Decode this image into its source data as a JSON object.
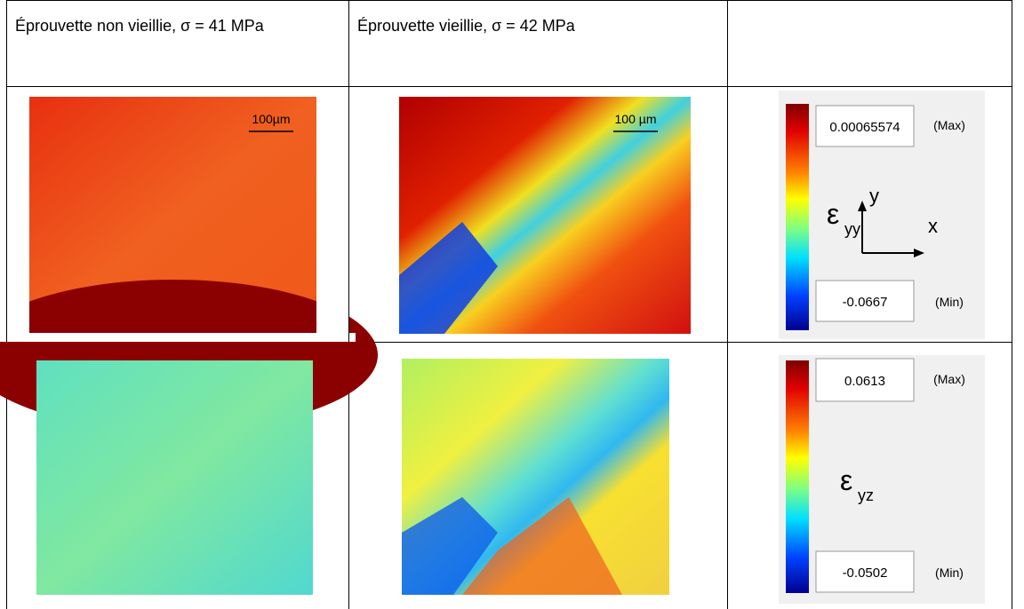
{
  "table": {
    "header": [
      "Éprouvette non vieillie, σ = 41 MPa",
      "Éprouvette vieillie, σ = 42 MPa"
    ],
    "rows": [
      {
        "scale_bars": [
          "100µm",
          "100 µm"
        ],
        "colorbar": {
          "max": "0.00065574",
          "max_label": "(Max)",
          "min": "-0.0667",
          "min_label": "(Min)",
          "symbol": "ε",
          "subscript": "yy",
          "axes": [
            "y",
            "x"
          ]
        }
      },
      {
        "colorbar": {
          "max": "0.0613",
          "max_label": "(Max)",
          "min": "-0.0502",
          "min_label": "(Min)",
          "symbol": "ε",
          "subscript": "yz"
        }
      }
    ]
  }
}
